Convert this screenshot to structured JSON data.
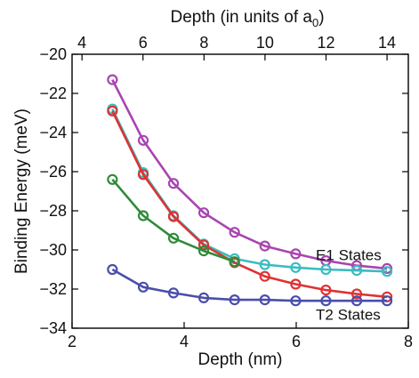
{
  "chart_data": {
    "type": "line",
    "xlabel": "Depth (nm)",
    "ylabel": "Binding Energy (meV)",
    "top_xlabel": "Depth (in units of a",
    "top_xlabel_sub": "0",
    "top_xlabel_close": ")",
    "xlim": [
      2,
      8
    ],
    "ylim": [
      -34,
      -20
    ],
    "x_ticks": [
      2,
      4,
      6,
      8
    ],
    "y_ticks": [
      -34,
      -32,
      -30,
      -28,
      -26,
      -24,
      -22,
      -20
    ],
    "top_x_ticks": [
      4,
      6,
      8,
      10,
      12,
      14
    ],
    "top_axis_scale": 0.5443,
    "grid": false,
    "annotations": [
      {
        "text": "E1 States",
        "x": 6.35,
        "y": -30.25
      },
      {
        "text": "T2 States",
        "x": 6.35,
        "y": -33.3
      }
    ],
    "x": [
      2.72,
      3.27,
      3.81,
      4.35,
      4.9,
      5.44,
      5.99,
      6.53,
      7.08,
      7.62
    ],
    "series": [
      {
        "color": "#a845b0",
        "values": [
          -21.3,
          -24.4,
          -26.6,
          -28.1,
          -29.1,
          -29.8,
          -30.2,
          -30.55,
          -30.8,
          -30.95
        ]
      },
      {
        "color": "#3bbcc0",
        "values": [
          -22.8,
          -26.05,
          -28.25,
          -29.7,
          -30.45,
          -30.75,
          -30.9,
          -31.0,
          -31.05,
          -31.1
        ]
      },
      {
        "color": "#dd3333",
        "values": [
          -22.9,
          -26.15,
          -28.3,
          -29.75,
          -30.65,
          -31.35,
          -31.75,
          -32.05,
          -32.25,
          -32.4
        ]
      },
      {
        "color": "#2e8b3a",
        "values": [
          -26.4,
          -28.25,
          -29.4,
          -30.05,
          -30.6,
          null,
          null,
          null,
          null,
          null
        ]
      },
      {
        "color": "#4a4eaa",
        "values": [
          -31.0,
          -31.9,
          -32.2,
          -32.45,
          -32.55,
          -32.55,
          -32.6,
          -32.6,
          -32.6,
          -32.6
        ]
      }
    ]
  }
}
